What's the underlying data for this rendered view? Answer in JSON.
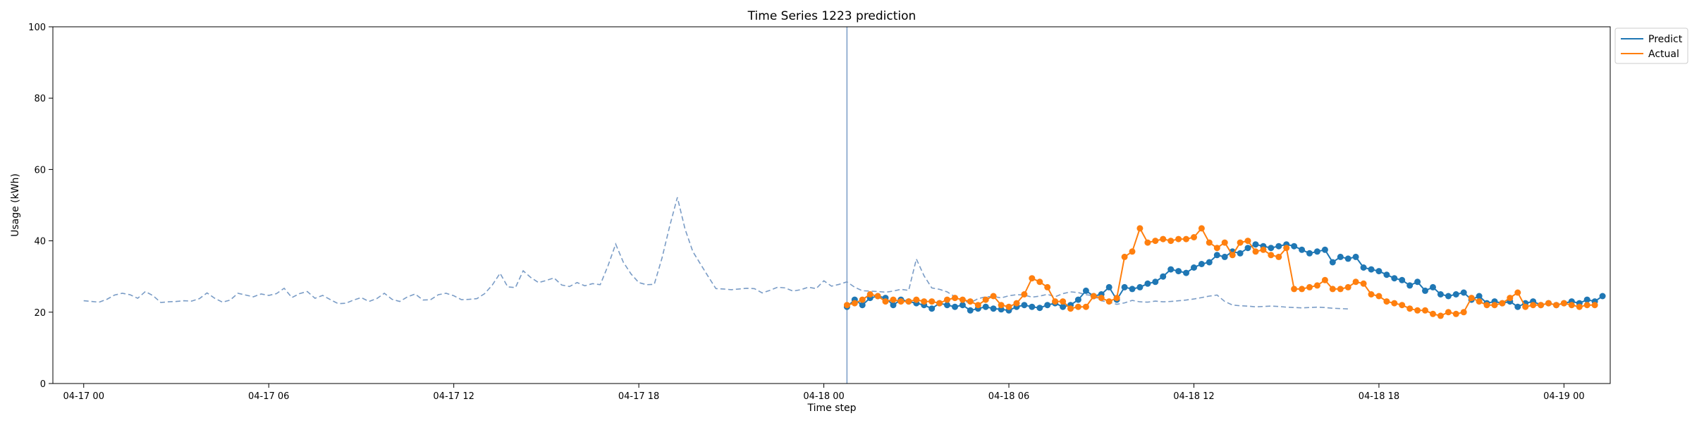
{
  "chart_data": {
    "type": "line",
    "title": "Time Series 1223 prediction",
    "xlabel": "Time step",
    "ylabel": "Usage (kWh)",
    "ylim": [
      0,
      100
    ],
    "yticks": [
      0,
      20,
      40,
      60,
      80,
      100
    ],
    "xlim": [
      "2024-04-16 23:00",
      "2024-04-19 01:30"
    ],
    "xticks": [
      {
        "t": "2024-04-17 00:00",
        "label": "04-17 00"
      },
      {
        "t": "2024-04-17 06:00",
        "label": "04-17 06"
      },
      {
        "t": "2024-04-17 12:00",
        "label": "04-17 12"
      },
      {
        "t": "2024-04-17 18:00",
        "label": "04-17 18"
      },
      {
        "t": "2024-04-18 00:00",
        "label": "04-18 00"
      },
      {
        "t": "2024-04-18 06:00",
        "label": "04-18 06"
      },
      {
        "t": "2024-04-18 12:00",
        "label": "04-18 12"
      },
      {
        "t": "2024-04-18 18:00",
        "label": "04-18 18"
      },
      {
        "t": "2024-04-19 00:00",
        "label": "04-19 00"
      }
    ],
    "grid": false,
    "legend_position": "outside top-right",
    "forecast_start": "2024-04-18 00:45",
    "history": {
      "start": "2024-04-17 00:00",
      "step_minutes": 15,
      "color": "#7a9cc6",
      "style": "dashed",
      "values": [
        23.2,
        23.0,
        22.8,
        23.6,
        24.8,
        25.3,
        24.9,
        23.9,
        25.8,
        24.6,
        22.7,
        22.9,
        23.0,
        23.2,
        23.1,
        23.8,
        25.4,
        23.9,
        22.8,
        23.4,
        25.3,
        24.8,
        24.3,
        25.1,
        24.7,
        25.2,
        26.7,
        24.1,
        25.2,
        25.8,
        23.9,
        24.7,
        23.5,
        22.4,
        22.5,
        23.4,
        24.1,
        23.0,
        23.8,
        25.3,
        23.6,
        23.0,
        24.3,
        25.1,
        23.4,
        23.5,
        24.9,
        25.3,
        24.6,
        23.5,
        23.6,
        23.8,
        25.2,
        27.6,
        30.9,
        27.1,
        26.9,
        31.6,
        29.7,
        28.3,
        28.9,
        29.6,
        27.6,
        27.2,
        28.3,
        27.4,
        28.0,
        27.7,
        33.0,
        39.1,
        34.0,
        30.7,
        28.3,
        27.7,
        27.8,
        35.1,
        44.1,
        52.2,
        43.3,
        37.0,
        33.5,
        30.0,
        26.6,
        26.5,
        26.3,
        26.5,
        26.7,
        26.6,
        25.4,
        26.1,
        27.0,
        26.8,
        25.9,
        26.3,
        27.0,
        26.6,
        28.8,
        27.3,
        27.8,
        28.5,
        27.0,
        26.0,
        25.9,
        25.8,
        25.6,
        25.9,
        26.4,
        26.1,
        34.9,
        30.2,
        26.8,
        26.4,
        25.7,
        24.3,
        23.2,
        22.6,
        23.8,
        24.3,
        24.4,
        24.0,
        24.6,
        24.9,
        24.8,
        24.2,
        24.5,
        25.0,
        24.3,
        25.2,
        25.7,
        25.5,
        24.9,
        24.6,
        23.2,
        22.8,
        22.2,
        22.6,
        23.3,
        22.9,
        22.8,
        23.1,
        22.9,
        23.0,
        23.2,
        23.4,
        23.7,
        24.1,
        24.5,
        24.8,
        23.0,
        22.0,
        21.8,
        21.7,
        21.5,
        21.6,
        21.7,
        21.6,
        21.4,
        21.3,
        21.2,
        21.3,
        21.4,
        21.3,
        21.1,
        21.0,
        20.9
      ]
    },
    "series": [
      {
        "name": "Predict",
        "color": "#1f77b4",
        "start": "2024-04-18 00:45",
        "step_minutes": 15,
        "values": [
          21.5,
          23.5,
          22.0,
          24.0,
          24.5,
          24.0,
          22.0,
          23.5,
          23.0,
          22.5,
          22.0,
          21.0,
          22.5,
          22.0,
          21.5,
          22.0,
          20.5,
          21.0,
          21.5,
          21.0,
          20.8,
          20.5,
          21.5,
          22.0,
          21.5,
          21.2,
          22.0,
          22.5,
          21.5,
          22.0,
          23.5,
          26.0,
          24.5,
          25.0,
          27.0,
          23.5,
          27.0,
          26.5,
          27.0,
          28.0,
          28.5,
          30.0,
          32.0,
          31.5,
          31.0,
          32.5,
          33.5,
          34.0,
          36.0,
          35.5,
          37.0,
          36.5,
          38.0,
          39.0,
          38.5,
          38.0,
          38.5,
          39.0,
          38.5,
          37.5,
          36.5,
          37.0,
          37.5,
          34.0,
          35.5,
          35.0,
          35.5,
          32.5,
          32.0,
          31.5,
          30.5,
          29.5,
          29.0,
          27.5,
          28.5,
          26.0,
          27.0,
          25.0,
          24.5,
          25.0,
          25.5,
          23.5,
          24.5,
          22.5,
          23.0,
          22.5,
          23.0,
          21.5,
          22.5,
          23.0,
          22.0,
          22.5,
          22.0,
          22.5,
          23.0,
          22.5,
          23.5,
          23.0,
          24.5
        ]
      },
      {
        "name": "Actual",
        "color": "#ff7f0e",
        "start": "2024-04-18 00:45",
        "step_minutes": 15,
        "values": [
          22.0,
          22.5,
          23.5,
          25.0,
          24.5,
          23.0,
          23.5,
          23.0,
          23.0,
          23.5,
          23.0,
          23.0,
          22.5,
          23.5,
          24.0,
          23.5,
          23.0,
          22.0,
          23.5,
          24.5,
          22.0,
          21.5,
          22.5,
          25.0,
          29.5,
          28.5,
          27.0,
          23.0,
          23.0,
          21.0,
          21.5,
          21.5,
          24.5,
          24.0,
          23.0,
          24.0,
          35.5,
          37.0,
          43.5,
          39.5,
          40.0,
          40.5,
          40.0,
          40.5,
          40.5,
          41.0,
          43.5,
          39.5,
          38.0,
          39.5,
          36.0,
          39.5,
          40.0,
          37.0,
          37.5,
          36.0,
          35.5,
          38.0,
          26.5,
          26.5,
          27.0,
          27.5,
          29.0,
          26.5,
          26.5,
          27.0,
          28.5,
          28.0,
          25.0,
          24.5,
          23.0,
          22.5,
          22.0,
          21.0,
          20.5,
          20.5,
          19.5,
          19.0,
          20.0,
          19.5,
          20.0,
          24.0,
          23.0,
          22.0,
          22.0,
          22.5,
          24.0,
          25.5,
          21.5,
          22.0,
          22.0,
          22.5,
          22.0,
          22.5,
          22.0,
          21.5,
          22.0,
          22.0
        ]
      }
    ]
  }
}
